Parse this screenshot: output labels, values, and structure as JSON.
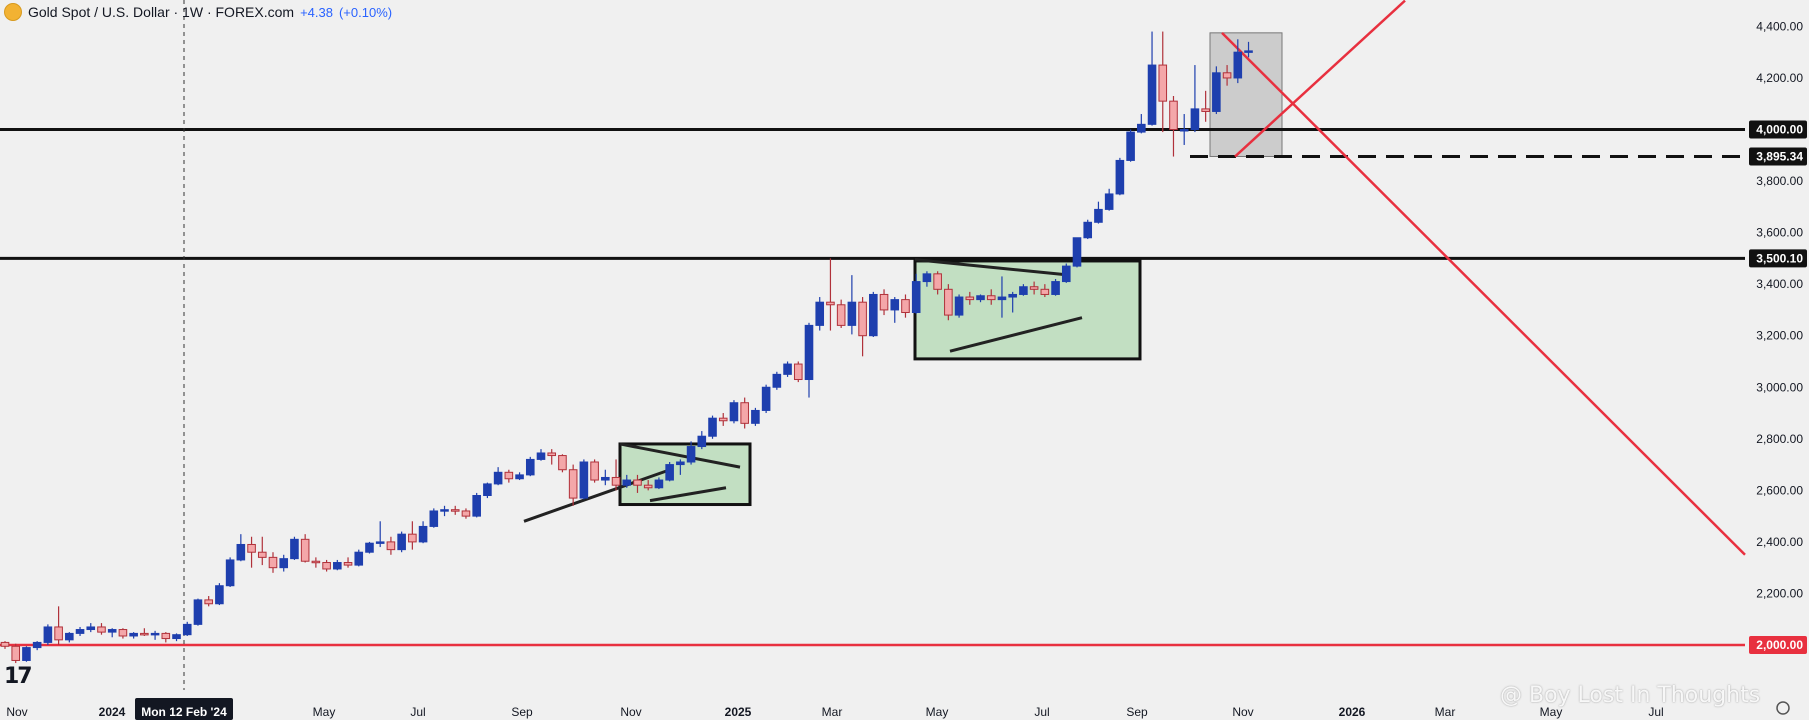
{
  "header": {
    "symbol_title": "Gold Spot / U.S. Dollar · 1W · FOREX.com",
    "change": "+4.38",
    "change_pct": "(+0.10%)"
  },
  "watermark": "@ Boy Lost In Thoughts",
  "tv_logo": "17",
  "crosshair_label": "Mon 12 Feb '24",
  "colors": {
    "up": "#1e3fae",
    "down": "#f4a7a9",
    "down_border": "#b0313a",
    "support_line": "#e8303f",
    "box_fill": "#c2dfc2",
    "gray_box": "#c8c8c8"
  },
  "chart_data": {
    "type": "candlestick",
    "title": "Gold Spot / U.S. Dollar",
    "interval": "1W",
    "ylim": [
      1900,
      4450
    ],
    "y_ticks": [
      "2,000.00",
      "2,200.00",
      "2,400.00",
      "2,600.00",
      "2,800.00",
      "3,000.00",
      "3,200.00",
      "3,400.00",
      "3,600.00",
      "3,800.00",
      "4,000.00",
      "4,200.00",
      "4,400.00"
    ],
    "x_ticks": [
      "Nov",
      "2024",
      "May",
      "Jul",
      "Sep",
      "Nov",
      "2025",
      "Mar",
      "May",
      "Jul",
      "Sep",
      "Nov",
      "2026",
      "Mar",
      "May",
      "Jul"
    ],
    "price_labels": [
      {
        "value": 4000.0,
        "text": "4,000.00",
        "style": "solid-black"
      },
      {
        "value": 3895.34,
        "text": "3,895.34",
        "style": "dashed-black"
      },
      {
        "value": 3500.1,
        "text": "3,500.10",
        "style": "solid-black"
      },
      {
        "value": 2000.0,
        "text": "2,000.00",
        "style": "solid-red"
      }
    ],
    "candles": [
      {
        "o": 2010,
        "h": 2015,
        "l": 1985,
        "c": 1995
      },
      {
        "o": 1995,
        "h": 2005,
        "l": 1930,
        "c": 1940
      },
      {
        "o": 1940,
        "h": 1995,
        "l": 1935,
        "c": 1990
      },
      {
        "o": 1990,
        "h": 2015,
        "l": 1980,
        "c": 2010
      },
      {
        "o": 2010,
        "h": 2080,
        "l": 2000,
        "c": 2070
      },
      {
        "o": 2070,
        "h": 2150,
        "l": 2000,
        "c": 2020
      },
      {
        "o": 2020,
        "h": 2050,
        "l": 2010,
        "c": 2045
      },
      {
        "o": 2045,
        "h": 2070,
        "l": 2035,
        "c": 2060
      },
      {
        "o": 2060,
        "h": 2085,
        "l": 2050,
        "c": 2070
      },
      {
        "o": 2070,
        "h": 2085,
        "l": 2040,
        "c": 2050
      },
      {
        "o": 2050,
        "h": 2065,
        "l": 2030,
        "c": 2060
      },
      {
        "o": 2060,
        "h": 2065,
        "l": 2025,
        "c": 2035
      },
      {
        "o": 2035,
        "h": 2050,
        "l": 2025,
        "c": 2045
      },
      {
        "o": 2045,
        "h": 2065,
        "l": 2035,
        "c": 2040
      },
      {
        "o": 2040,
        "h": 2055,
        "l": 2020,
        "c": 2045
      },
      {
        "o": 2045,
        "h": 2050,
        "l": 2010,
        "c": 2025
      },
      {
        "o": 2025,
        "h": 2045,
        "l": 2015,
        "c": 2040
      },
      {
        "o": 2040,
        "h": 2090,
        "l": 2035,
        "c": 2080
      },
      {
        "o": 2080,
        "h": 2180,
        "l": 2075,
        "c": 2175
      },
      {
        "o": 2175,
        "h": 2190,
        "l": 2150,
        "c": 2160
      },
      {
        "o": 2160,
        "h": 2240,
        "l": 2155,
        "c": 2230
      },
      {
        "o": 2230,
        "h": 2340,
        "l": 2225,
        "c": 2330
      },
      {
        "o": 2330,
        "h": 2430,
        "l": 2325,
        "c": 2390
      },
      {
        "o": 2390,
        "h": 2420,
        "l": 2300,
        "c": 2360
      },
      {
        "o": 2360,
        "h": 2420,
        "l": 2310,
        "c": 2340
      },
      {
        "o": 2340,
        "h": 2360,
        "l": 2280,
        "c": 2300
      },
      {
        "o": 2300,
        "h": 2350,
        "l": 2285,
        "c": 2335
      },
      {
        "o": 2335,
        "h": 2420,
        "l": 2330,
        "c": 2410
      },
      {
        "o": 2410,
        "h": 2430,
        "l": 2320,
        "c": 2325
      },
      {
        "o": 2325,
        "h": 2340,
        "l": 2300,
        "c": 2320
      },
      {
        "o": 2320,
        "h": 2330,
        "l": 2285,
        "c": 2295
      },
      {
        "o": 2295,
        "h": 2330,
        "l": 2290,
        "c": 2320
      },
      {
        "o": 2320,
        "h": 2340,
        "l": 2300,
        "c": 2310
      },
      {
        "o": 2310,
        "h": 2370,
        "l": 2305,
        "c": 2360
      },
      {
        "o": 2360,
        "h": 2400,
        "l": 2355,
        "c": 2395
      },
      {
        "o": 2395,
        "h": 2480,
        "l": 2380,
        "c": 2400
      },
      {
        "o": 2400,
        "h": 2420,
        "l": 2350,
        "c": 2370
      },
      {
        "o": 2370,
        "h": 2440,
        "l": 2360,
        "c": 2430
      },
      {
        "o": 2430,
        "h": 2480,
        "l": 2370,
        "c": 2400
      },
      {
        "o": 2400,
        "h": 2480,
        "l": 2395,
        "c": 2460
      },
      {
        "o": 2460,
        "h": 2530,
        "l": 2455,
        "c": 2520
      },
      {
        "o": 2520,
        "h": 2540,
        "l": 2500,
        "c": 2525
      },
      {
        "o": 2525,
        "h": 2540,
        "l": 2505,
        "c": 2520
      },
      {
        "o": 2520,
        "h": 2530,
        "l": 2490,
        "c": 2500
      },
      {
        "o": 2500,
        "h": 2590,
        "l": 2495,
        "c": 2580
      },
      {
        "o": 2580,
        "h": 2630,
        "l": 2570,
        "c": 2625
      },
      {
        "o": 2625,
        "h": 2690,
        "l": 2620,
        "c": 2670
      },
      {
        "o": 2670,
        "h": 2680,
        "l": 2630,
        "c": 2645
      },
      {
        "o": 2645,
        "h": 2670,
        "l": 2640,
        "c": 2660
      },
      {
        "o": 2660,
        "h": 2730,
        "l": 2655,
        "c": 2720
      },
      {
        "o": 2720,
        "h": 2760,
        "l": 2715,
        "c": 2745
      },
      {
        "o": 2745,
        "h": 2760,
        "l": 2700,
        "c": 2735
      },
      {
        "o": 2735,
        "h": 2740,
        "l": 2670,
        "c": 2680
      },
      {
        "o": 2680,
        "h": 2700,
        "l": 2540,
        "c": 2570
      },
      {
        "o": 2570,
        "h": 2720,
        "l": 2565,
        "c": 2710
      },
      {
        "o": 2710,
        "h": 2720,
        "l": 2630,
        "c": 2640
      },
      {
        "o": 2640,
        "h": 2680,
        "l": 2620,
        "c": 2650
      },
      {
        "o": 2650,
        "h": 2720,
        "l": 2600,
        "c": 2620
      },
      {
        "o": 2620,
        "h": 2660,
        "l": 2610,
        "c": 2640
      },
      {
        "o": 2640,
        "h": 2660,
        "l": 2590,
        "c": 2620
      },
      {
        "o": 2620,
        "h": 2640,
        "l": 2600,
        "c": 2610
      },
      {
        "o": 2610,
        "h": 2650,
        "l": 2605,
        "c": 2640
      },
      {
        "o": 2640,
        "h": 2710,
        "l": 2635,
        "c": 2700
      },
      {
        "o": 2700,
        "h": 2720,
        "l": 2660,
        "c": 2710
      },
      {
        "o": 2710,
        "h": 2790,
        "l": 2700,
        "c": 2770
      },
      {
        "o": 2770,
        "h": 2830,
        "l": 2760,
        "c": 2810
      },
      {
        "o": 2810,
        "h": 2890,
        "l": 2800,
        "c": 2880
      },
      {
        "o": 2880,
        "h": 2900,
        "l": 2850,
        "c": 2870
      },
      {
        "o": 2870,
        "h": 2950,
        "l": 2860,
        "c": 2940
      },
      {
        "o": 2940,
        "h": 2960,
        "l": 2840,
        "c": 2860
      },
      {
        "o": 2860,
        "h": 2920,
        "l": 2850,
        "c": 2910
      },
      {
        "o": 2910,
        "h": 3010,
        "l": 2900,
        "c": 3000
      },
      {
        "o": 3000,
        "h": 3060,
        "l": 2990,
        "c": 3050
      },
      {
        "o": 3050,
        "h": 3100,
        "l": 3040,
        "c": 3090
      },
      {
        "o": 3090,
        "h": 3100,
        "l": 3020,
        "c": 3030
      },
      {
        "o": 3030,
        "h": 3250,
        "l": 2960,
        "c": 3240
      },
      {
        "o": 3240,
        "h": 3350,
        "l": 3220,
        "c": 3330
      },
      {
        "o": 3330,
        "h": 3500,
        "l": 3220,
        "c": 3320
      },
      {
        "o": 3320,
        "h": 3340,
        "l": 3230,
        "c": 3240
      },
      {
        "o": 3240,
        "h": 3435,
        "l": 3205,
        "c": 3330
      },
      {
        "o": 3330,
        "h": 3350,
        "l": 3120,
        "c": 3200
      },
      {
        "o": 3200,
        "h": 3370,
        "l": 3195,
        "c": 3360
      },
      {
        "o": 3360,
        "h": 3380,
        "l": 3280,
        "c": 3300
      },
      {
        "o": 3300,
        "h": 3350,
        "l": 3250,
        "c": 3340
      },
      {
        "o": 3340,
        "h": 3360,
        "l": 3270,
        "c": 3290
      },
      {
        "o": 3290,
        "h": 3440,
        "l": 3285,
        "c": 3410
      },
      {
        "o": 3410,
        "h": 3450,
        "l": 3390,
        "c": 3440
      },
      {
        "o": 3440,
        "h": 3450,
        "l": 3360,
        "c": 3380
      },
      {
        "o": 3380,
        "h": 3400,
        "l": 3260,
        "c": 3280
      },
      {
        "o": 3280,
        "h": 3360,
        "l": 3270,
        "c": 3350
      },
      {
        "o": 3350,
        "h": 3370,
        "l": 3320,
        "c": 3340
      },
      {
        "o": 3340,
        "h": 3360,
        "l": 3330,
        "c": 3355
      },
      {
        "o": 3355,
        "h": 3380,
        "l": 3320,
        "c": 3340
      },
      {
        "o": 3340,
        "h": 3430,
        "l": 3270,
        "c": 3350
      },
      {
        "o": 3350,
        "h": 3370,
        "l": 3290,
        "c": 3360
      },
      {
        "o": 3360,
        "h": 3400,
        "l": 3355,
        "c": 3390
      },
      {
        "o": 3390,
        "h": 3410,
        "l": 3360,
        "c": 3380
      },
      {
        "o": 3380,
        "h": 3400,
        "l": 3350,
        "c": 3360
      },
      {
        "o": 3360,
        "h": 3420,
        "l": 3355,
        "c": 3410
      },
      {
        "o": 3410,
        "h": 3480,
        "l": 3405,
        "c": 3470
      },
      {
        "o": 3470,
        "h": 3580,
        "l": 3465,
        "c": 3580
      },
      {
        "o": 3580,
        "h": 3650,
        "l": 3575,
        "c": 3640
      },
      {
        "o": 3640,
        "h": 3720,
        "l": 3635,
        "c": 3690
      },
      {
        "o": 3690,
        "h": 3770,
        "l": 3685,
        "c": 3750
      },
      {
        "o": 3750,
        "h": 3890,
        "l": 3745,
        "c": 3880
      },
      {
        "o": 3880,
        "h": 4000,
        "l": 3875,
        "c": 3990
      },
      {
        "o": 3990,
        "h": 4060,
        "l": 3985,
        "c": 4020
      },
      {
        "o": 4020,
        "h": 4380,
        "l": 4015,
        "c": 4250
      },
      {
        "o": 4250,
        "h": 4380,
        "l": 3990,
        "c": 4110
      },
      {
        "o": 4110,
        "h": 4130,
        "l": 3895,
        "c": 4000
      },
      {
        "o": 4000,
        "h": 4060,
        "l": 3940,
        "c": 4000
      },
      {
        "o": 4000,
        "h": 4250,
        "l": 3990,
        "c": 4080
      },
      {
        "o": 4080,
        "h": 4150,
        "l": 4030,
        "c": 4070
      },
      {
        "o": 4070,
        "h": 4245,
        "l": 4060,
        "c": 4220
      },
      {
        "o": 4220,
        "h": 4250,
        "l": 4170,
        "c": 4200
      },
      {
        "o": 4200,
        "h": 4350,
        "l": 4180,
        "c": 4300
      },
      {
        "o": 4300,
        "h": 4340,
        "l": 4280,
        "c": 4305
      }
    ]
  }
}
